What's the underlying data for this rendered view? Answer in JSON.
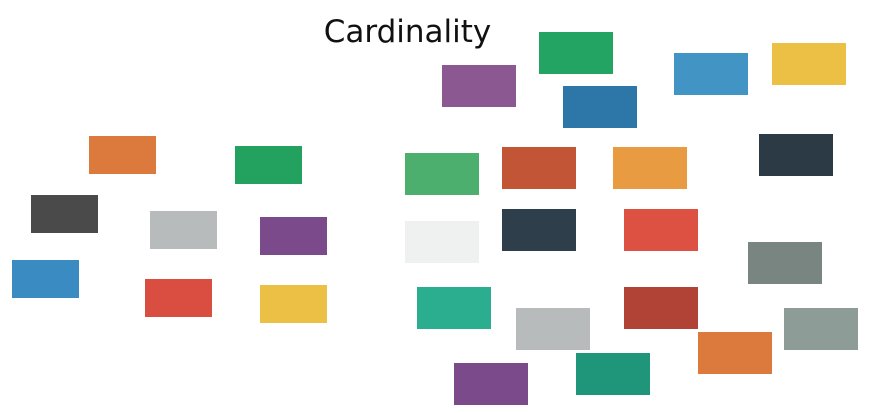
{
  "title": "Cardinality",
  "left_group": {
    "blocks": [
      {
        "name": "left-block-orange",
        "color": "#DB7A3C"
      },
      {
        "name": "left-block-green",
        "color": "#22A15F"
      },
      {
        "name": "left-block-darkgray",
        "color": "#4A4A4A"
      },
      {
        "name": "left-block-silver",
        "color": "#B7BBBB"
      },
      {
        "name": "left-block-purple",
        "color": "#7A4A8A"
      },
      {
        "name": "left-block-blue",
        "color": "#3A8BC2"
      },
      {
        "name": "left-block-red",
        "color": "#DA4E41"
      },
      {
        "name": "left-block-yellow",
        "color": "#ECBF45"
      }
    ]
  },
  "right_group": {
    "blocks": [
      {
        "name": "right-block-green-top",
        "color": "#24A462"
      },
      {
        "name": "right-block-purple-top",
        "color": "#8B5891"
      },
      {
        "name": "right-block-blue-light",
        "color": "#4294C5"
      },
      {
        "name": "right-block-yellow",
        "color": "#ECBF45"
      },
      {
        "name": "right-block-blue",
        "color": "#2C77A8"
      },
      {
        "name": "right-block-green-light",
        "color": "#4CAF6E"
      },
      {
        "name": "right-block-rust",
        "color": "#C15535"
      },
      {
        "name": "right-block-orange-light",
        "color": "#E99B41"
      },
      {
        "name": "right-block-navy-top",
        "color": "#2C3A45"
      },
      {
        "name": "right-block-white",
        "color": "#EFF0F0"
      },
      {
        "name": "right-block-navy",
        "color": "#2E3F4B"
      },
      {
        "name": "right-block-red",
        "color": "#DC5142"
      },
      {
        "name": "right-block-slate",
        "color": "#798580"
      },
      {
        "name": "right-block-teal",
        "color": "#2BAE90"
      },
      {
        "name": "right-block-silver",
        "color": "#B7BBBB"
      },
      {
        "name": "right-block-brick",
        "color": "#B14236"
      },
      {
        "name": "right-block-gray-green",
        "color": "#8E9C97"
      },
      {
        "name": "right-block-orange",
        "color": "#DB7A3C"
      },
      {
        "name": "right-block-purple-bottom",
        "color": "#7A4A8A"
      },
      {
        "name": "right-block-teal-dark",
        "color": "#1F967A"
      }
    ]
  }
}
